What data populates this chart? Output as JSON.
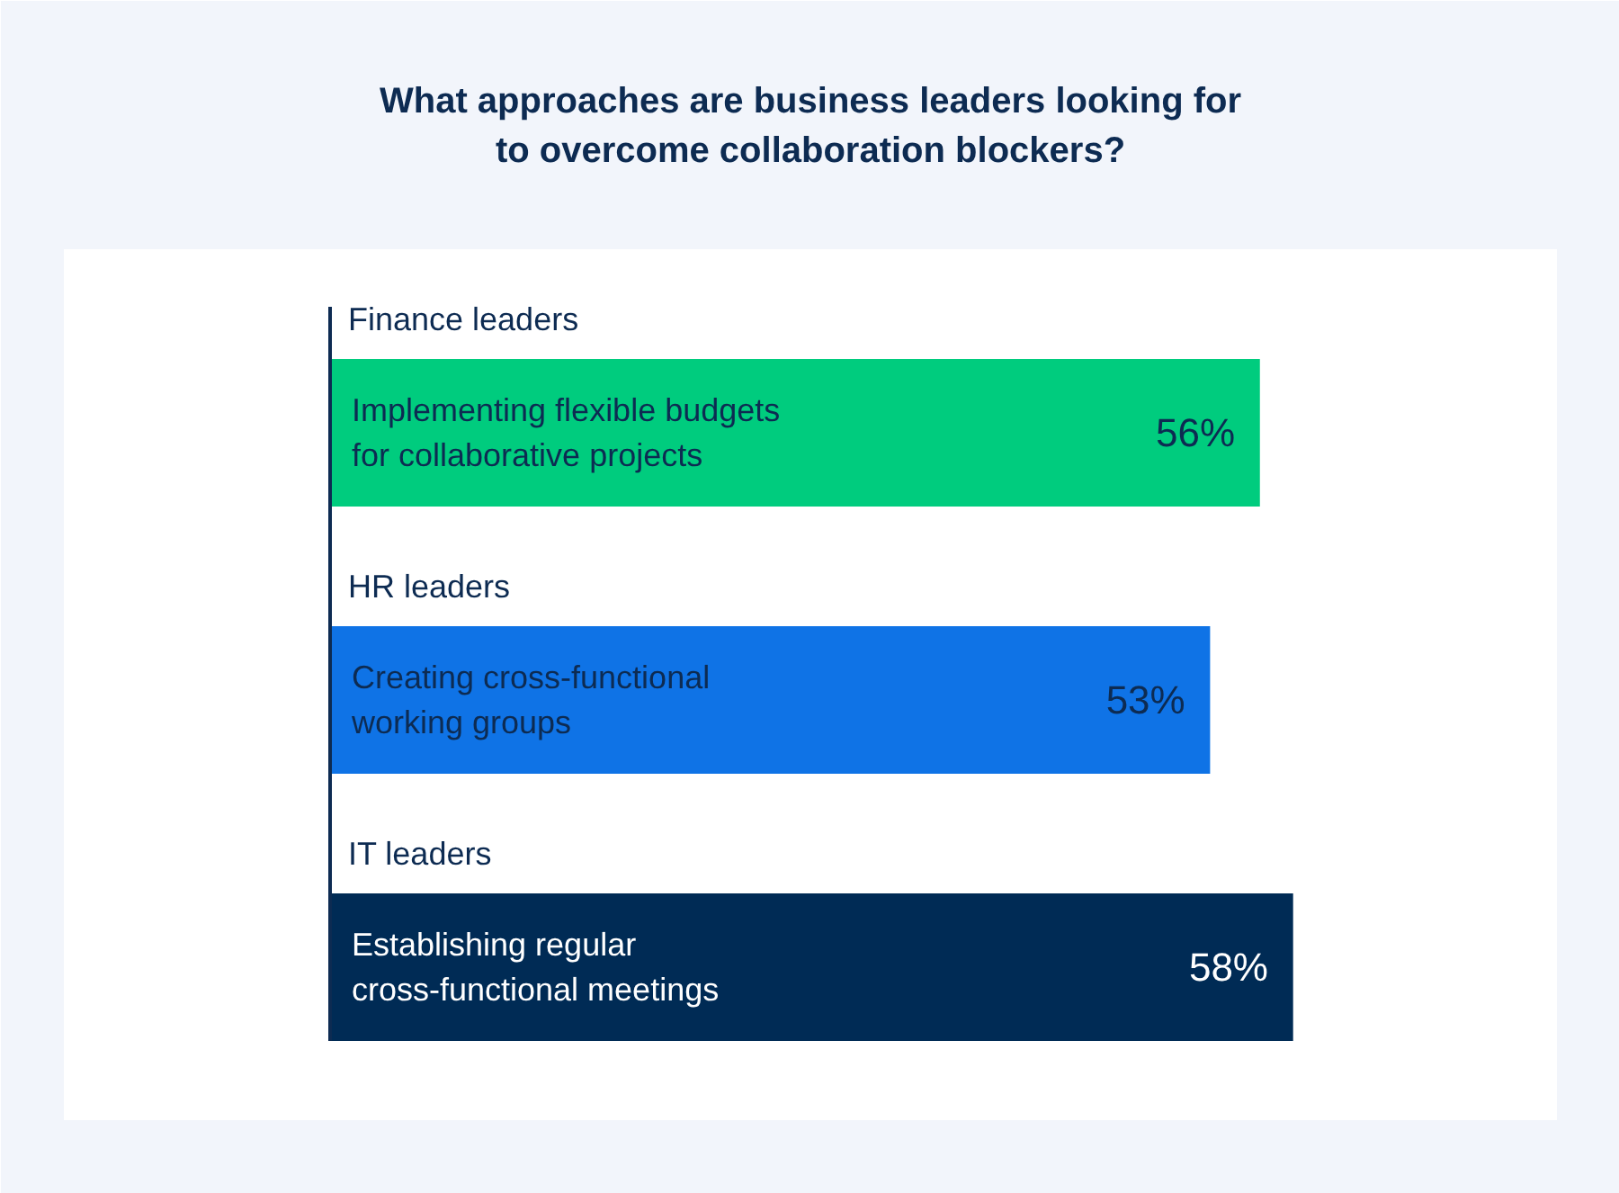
{
  "chart_data": {
    "type": "bar",
    "orientation": "horizontal",
    "title": "What approaches are business leaders looking for to overcome collaboration blockers?",
    "categories": [
      "Finance leaders",
      "HR leaders",
      "IT leaders"
    ],
    "values": [
      56,
      53,
      58
    ],
    "colors": [
      "#00cc7e",
      "#0f73e6",
      "#002b55"
    ],
    "value_labels": [
      "56%",
      "53%",
      "58%"
    ],
    "annotations": [
      "Implementing flexible budgets for collaborative projects",
      "Creating cross-functional working groups",
      "Establishing regular cross-functional meetings"
    ],
    "grid": false
  }
}
